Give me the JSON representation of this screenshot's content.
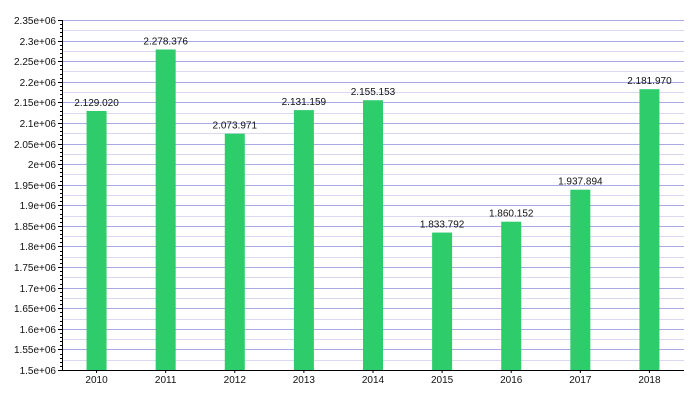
{
  "chart_data": {
    "type": "bar",
    "title": "",
    "xlabel": "",
    "ylabel": "",
    "categories": [
      "2010",
      "2011",
      "2012",
      "2013",
      "2014",
      "2015",
      "2016",
      "2017",
      "2018"
    ],
    "values": [
      2129020,
      2278376,
      2073971,
      2131159,
      2155153,
      1833792,
      1860152,
      1937894,
      2181970
    ],
    "value_labels": [
      "2.129.020",
      "2.278.376",
      "2.073.971",
      "2.131.159",
      "2.155.153",
      "1.833.792",
      "1.860.152",
      "1.937.894",
      "2.181.970"
    ],
    "ylim": [
      1500000,
      2350000
    ],
    "y_ticks": [
      1500000,
      1550000,
      1600000,
      1650000,
      1700000,
      1750000,
      1800000,
      1850000,
      1900000,
      1950000,
      2000000,
      2050000,
      2100000,
      2150000,
      2200000,
      2250000,
      2300000,
      2350000
    ],
    "y_tick_labels": [
      "1.5e+06",
      "1.55e+06",
      "1.6e+06",
      "1.65e+06",
      "1.7e+06",
      "1.75e+06",
      "1.8e+06",
      "1.85e+06",
      "1.9e+06",
      "1.95e+06",
      "2e+06",
      "2.05e+06",
      "2.1e+06",
      "2.15e+06",
      "2.2e+06",
      "2.25e+06",
      "2.3e+06",
      "2.35e+06"
    ],
    "grid": true,
    "bar_color": "#2ecc6a",
    "legend": "none"
  }
}
